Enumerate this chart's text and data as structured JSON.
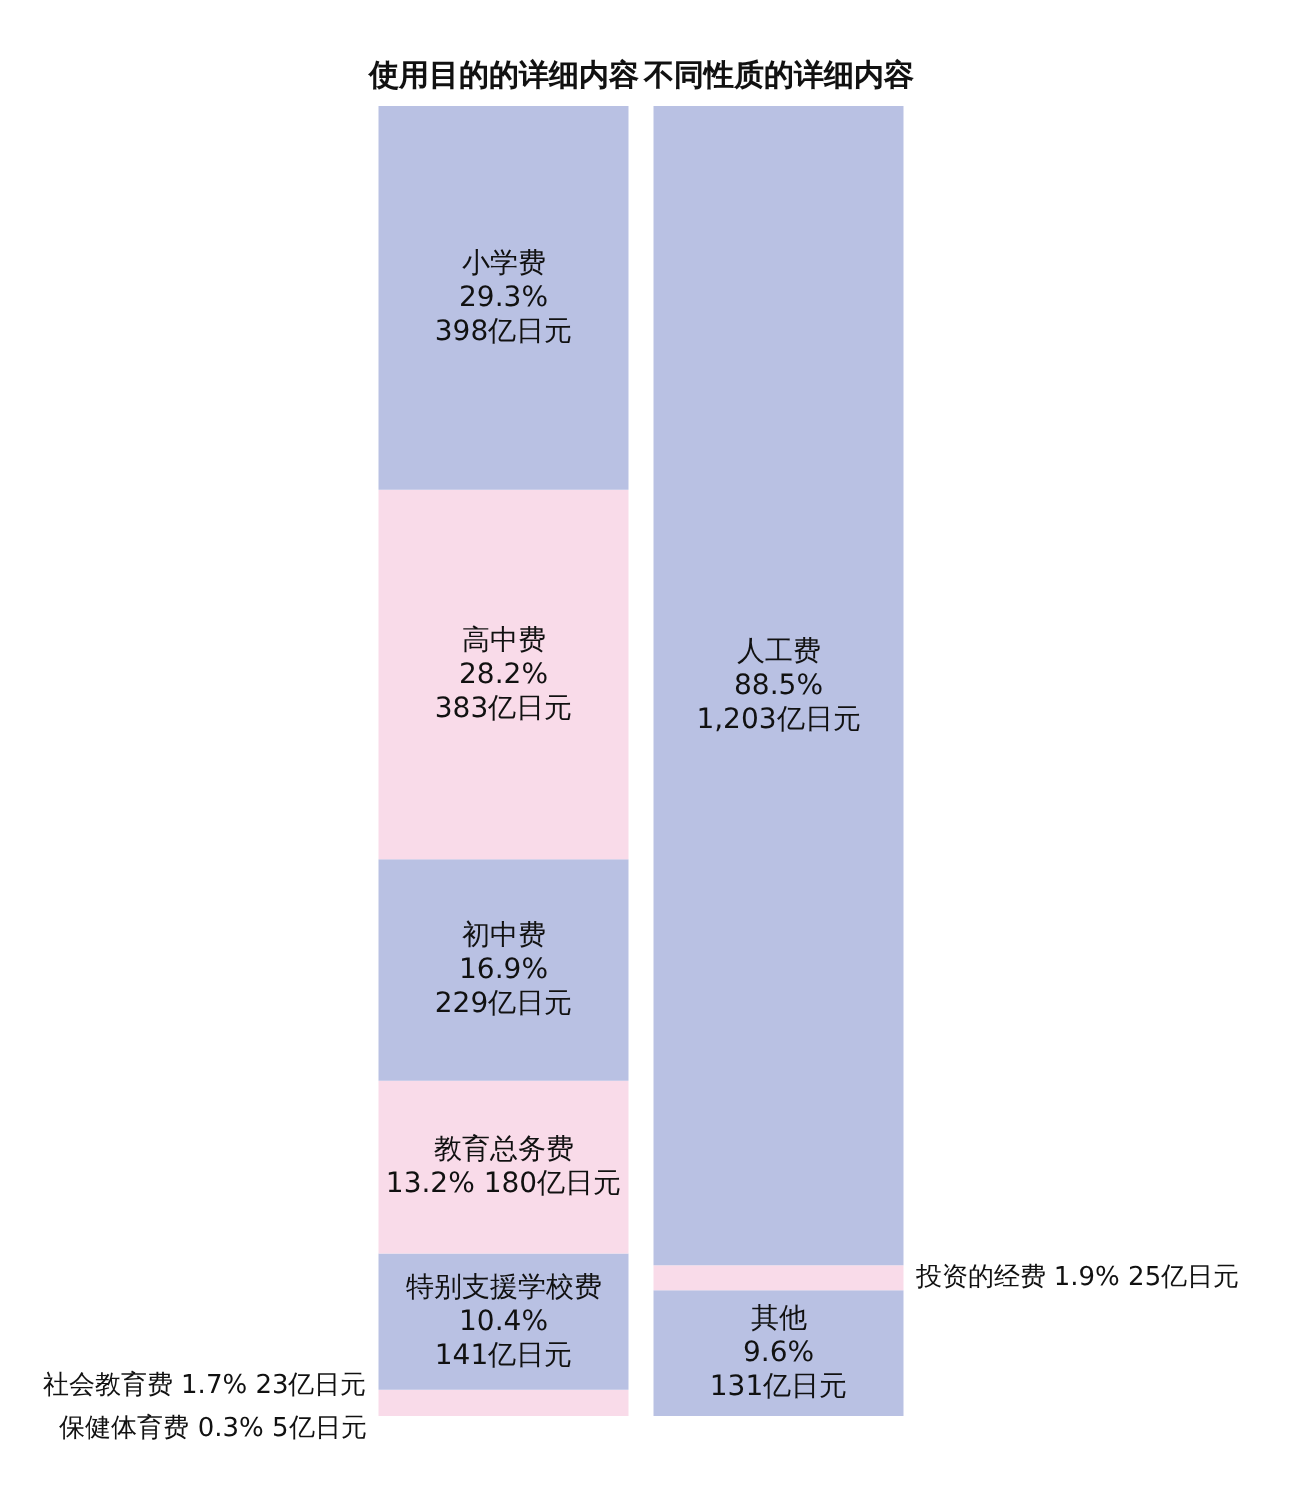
{
  "chart_data": {
    "type": "bar",
    "stacked": true,
    "legend": false,
    "grid": false,
    "categories": [
      "使用目的的详细内容",
      "不同性质的详细内容"
    ],
    "series": [
      {
        "name": "保健体育费",
        "color": "#f9dbe9",
        "values": [
          0.3,
          null
        ],
        "value_labels": [
          "0.3%\n5亿日元",
          null
        ]
      },
      {
        "name": "社会教育费",
        "color": "#f9dbe9",
        "values": [
          1.7,
          null
        ],
        "value_labels": [
          "1.7%\n23亿日元",
          null
        ]
      },
      {
        "name": "特别支援学校费",
        "color": "#b9c1e3",
        "values": [
          10.4,
          null
        ],
        "value_labels": [
          "10.4%\n141亿日元",
          null
        ]
      },
      {
        "name": "教育总务费",
        "color": "#f9dbe9",
        "values": [
          13.2,
          null
        ],
        "value_labels": [
          "13.2% 180亿日元",
          null
        ]
      },
      {
        "name": "初中费",
        "color": "#b9c1e3",
        "values": [
          16.9,
          null
        ],
        "value_labels": [
          "16.9%\n229亿日元",
          null
        ]
      },
      {
        "name": "高中费",
        "color": "#f9dbe9",
        "values": [
          28.2,
          null
        ],
        "value_labels": [
          "28.2%\n383亿日元",
          null
        ]
      },
      {
        "name": "小学费",
        "color": "#b9c1e3",
        "values": [
          29.3,
          null
        ],
        "value_labels": [
          "29.3%\n398亿日元",
          null
        ]
      },
      {
        "name": "其他",
        "color": "#b9c1e3",
        "values": [
          null,
          9.6
        ],
        "value_labels": [
          null,
          "9.6%\n131亿日元"
        ]
      },
      {
        "name": "投资的经费",
        "color": "#f9dbe9",
        "values": [
          null,
          1.9
        ],
        "value_labels": [
          null,
          "1.9%\n25亿日元"
        ]
      },
      {
        "name": "人工费",
        "color": "#b9c1e3",
        "values": [
          null,
          88.5
        ],
        "value_labels": [
          null,
          "88.5%\n1,203亿日元"
        ]
      }
    ]
  }
}
